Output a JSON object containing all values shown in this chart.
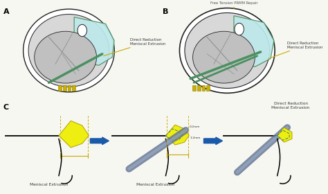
{
  "bg_color": "#f7f7f2",
  "panel_A_label": "A",
  "panel_B_label": "B",
  "panel_C_label": "C",
  "label_A_annot": "Direct Reduction\nMeniscal Extrusion",
  "label_B_annot1": "Free Tension PRMM Repair",
  "label_B_annot2": "Direct Reduction\nMeniscal Extrusion",
  "label_C1": "Meniscal Extrusion",
  "label_C2": "Meniscal Extrusion",
  "label_C3": "Direct Reduction\nMeniscal Extrusion",
  "knee_fill": "#bde8ea",
  "meniscus_yellow": "#eeee10",
  "meniscus_green": "#4a9060",
  "suture_blue": "#607090",
  "arrow_blue": "#1a5aaa",
  "line_color": "#222222",
  "annot_yellow": "#c8a800",
  "gray_outer": "#d8d8d8",
  "gray_inner": "#c0c0c0",
  "gray_dark": "#909090"
}
